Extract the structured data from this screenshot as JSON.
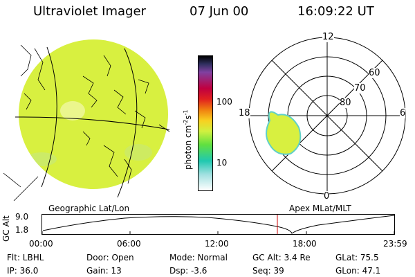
{
  "header": {
    "instrument": "Ultraviolet Imager",
    "date": "07 Jun 00",
    "time": "16:09:22 UT"
  },
  "colorbar": {
    "label": "photon cm",
    "label_sup1": "-2",
    "label_mid": "s",
    "label_sup2": "-1",
    "ticks": [
      "100",
      "10"
    ],
    "scale": "log"
  },
  "polar": {
    "mlt_labels": {
      "top": "12",
      "left": "18",
      "right": "6",
      "bottom": "0"
    },
    "lat_labels": [
      "60",
      "70",
      "80"
    ]
  },
  "timeline": {
    "left_title": "Geographic Lat/Lon",
    "right_title": "Apex MLat/MLT",
    "axis_label": "GC Alt",
    "y_ticks": [
      "9.0",
      "1.8"
    ],
    "x_ticks": [
      "00:00",
      "06:00",
      "12:00",
      "18:00",
      "23:59"
    ],
    "marker_time": "16:09:22",
    "marker_color": "#cc0000"
  },
  "footer": {
    "flt": "Flt: LBHL",
    "door": "Door: Open",
    "mode": "Mode: Normal",
    "gc_alt": "GC Alt: 3.4 Re",
    "glat": "GLat:  75.5",
    "ip": "IP: 36.0",
    "gain": "Gain: 13",
    "dsp": "Dsp:   -3.6",
    "seq": "Seq: 39",
    "glon": "GLon:  47.1"
  },
  "colors": {
    "image_fill": "#d8f040",
    "image_edge": "#5fd0c8",
    "image_highlight": "#f0f8a0"
  }
}
